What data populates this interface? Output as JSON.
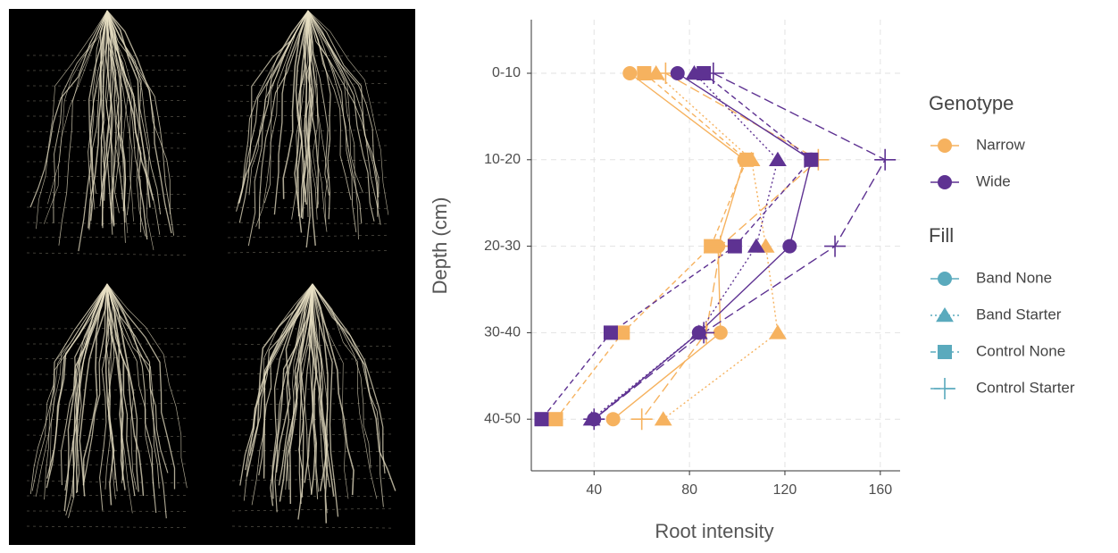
{
  "chart_data": {
    "type": "line",
    "xlabel": "Root intensity",
    "ylabel": "Depth (cm)",
    "categories": [
      "0-10",
      "10-20",
      "20-30",
      "30-40",
      "40-50"
    ],
    "xlim": [
      13.7,
      168.3
    ],
    "xticks": [
      40,
      80,
      120,
      160
    ],
    "grid": true,
    "legend_genotype": {
      "title": "Genotype",
      "items": [
        {
          "name": "Narrow",
          "color": "#f6b25f"
        },
        {
          "name": "Wide",
          "color": "#5e3292"
        }
      ]
    },
    "legend_fill": {
      "title": "Fill",
      "color": "#5aaabd",
      "items": [
        {
          "name": "Band None",
          "shape": "circle",
          "dash": "solid"
        },
        {
          "name": "Band Starter",
          "shape": "triangle",
          "dash": "dotted"
        },
        {
          "name": "Control None",
          "shape": "square",
          "dash": "dashed"
        },
        {
          "name": "Control Starter",
          "shape": "plus",
          "dash": "longdash"
        }
      ]
    },
    "series": [
      {
        "genotype": "Narrow",
        "fill": "Band None",
        "values": [
          55,
          103,
          92,
          93,
          48
        ]
      },
      {
        "genotype": "Narrow",
        "fill": "Band Starter",
        "values": [
          66,
          106,
          112,
          117,
          69
        ]
      },
      {
        "genotype": "Narrow",
        "fill": "Control None",
        "values": [
          61,
          104,
          89,
          52,
          24
        ]
      },
      {
        "genotype": "Narrow",
        "fill": "Control Starter",
        "values": [
          70,
          134,
          93,
          87,
          60
        ]
      },
      {
        "genotype": "Wide",
        "fill": "Band None",
        "values": [
          75,
          131,
          122,
          84,
          40
        ]
      },
      {
        "genotype": "Wide",
        "fill": "Band Starter",
        "values": [
          82,
          117,
          108,
          84,
          39
        ]
      },
      {
        "genotype": "Wide",
        "fill": "Control None",
        "values": [
          86,
          131,
          99,
          47,
          18
        ]
      },
      {
        "genotype": "Wide",
        "fill": "Control Starter",
        "values": [
          90,
          162,
          141,
          86,
          40
        ]
      }
    ]
  }
}
